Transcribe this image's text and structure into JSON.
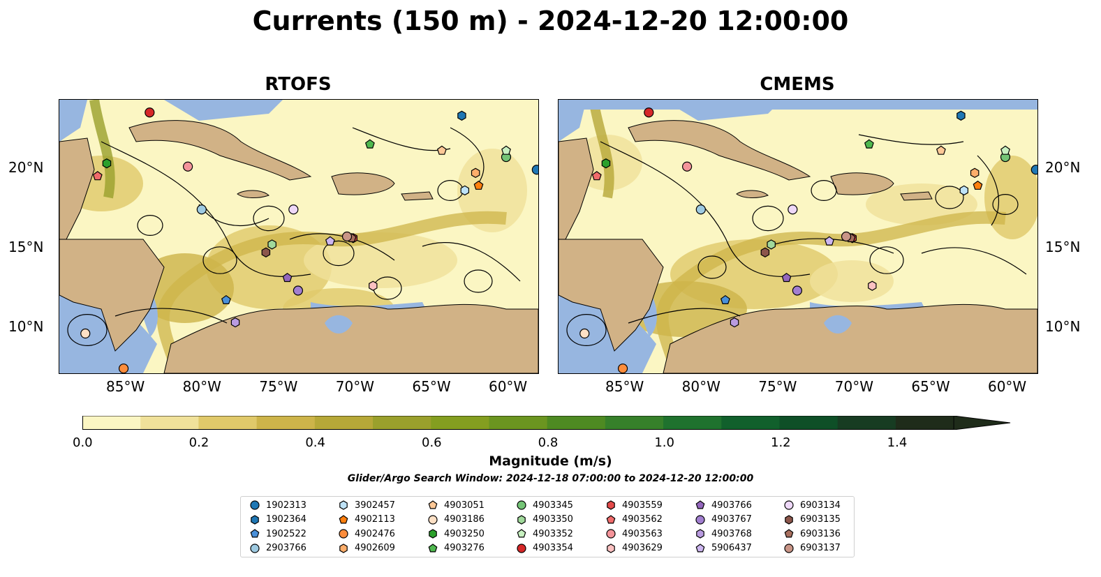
{
  "title": "Currents (150 m) - 2024-12-20 12:00:00",
  "panels": [
    {
      "title": "RTOFS"
    },
    {
      "title": "CMEMS"
    }
  ],
  "axes": {
    "lon_ticks": [
      "85°W",
      "80°W",
      "75°W",
      "70°W",
      "65°W",
      "60°W"
    ],
    "lat_ticks": [
      "20°N",
      "15°N",
      "10°N"
    ]
  },
  "colorbar": {
    "title": "Magnitude (m/s)",
    "tick_labels": [
      "0.0",
      "0.2",
      "0.4",
      "0.6",
      "0.8",
      "1.0",
      "1.2",
      "1.4"
    ],
    "range": [
      0.0,
      1.5
    ],
    "extend": "max",
    "colors": [
      "#fbf6c3",
      "#f0e19a",
      "#e0c96a",
      "#cdb44a",
      "#b6a838",
      "#9aa02c",
      "#849e20",
      "#6b9520",
      "#4e8a22",
      "#36802a",
      "#1f722e",
      "#11602c",
      "#0e4f27",
      "#173c22",
      "#1f2c1a"
    ]
  },
  "search_window": "Glider/Argo Search Window: 2024-12-18 07:00:00 to 2024-12-20 12:00:00",
  "colors": {
    "land": "#d1b286",
    "water": "#97b6e0",
    "low_speed": "#f5eab6"
  },
  "legend": [
    {
      "id": "1902313",
      "marker": "circle",
      "color": "#1f77b4"
    },
    {
      "id": "1902364",
      "marker": "hexagon",
      "color": "#1f77b4"
    },
    {
      "id": "1902522",
      "marker": "pentagon",
      "color": "#4a90d9"
    },
    {
      "id": "2903766",
      "marker": "circle",
      "color": "#9ecae1"
    },
    {
      "id": "3902457",
      "marker": "hexagon",
      "color": "#bfe3f7"
    },
    {
      "id": "4902113",
      "marker": "pentagon",
      "color": "#ff7f0e"
    },
    {
      "id": "4902476",
      "marker": "circle",
      "color": "#fd8d3c"
    },
    {
      "id": "4902609",
      "marker": "hexagon",
      "color": "#fdae6b"
    },
    {
      "id": "4903051",
      "marker": "pentagon",
      "color": "#fdc896"
    },
    {
      "id": "4903186",
      "marker": "circle",
      "color": "#fde0c5"
    },
    {
      "id": "4903250",
      "marker": "hexagon",
      "color": "#2ca02c"
    },
    {
      "id": "4903276",
      "marker": "pentagon",
      "color": "#4fb84f"
    },
    {
      "id": "4903345",
      "marker": "circle",
      "color": "#74c476"
    },
    {
      "id": "4903350",
      "marker": "hexagon",
      "color": "#a1d99b"
    },
    {
      "id": "4903352",
      "marker": "pentagon",
      "color": "#c7f0c0"
    },
    {
      "id": "4903354",
      "marker": "circle",
      "color": "#d62728"
    },
    {
      "id": "4903559",
      "marker": "hexagon",
      "color": "#e34a4a"
    },
    {
      "id": "4903562",
      "marker": "pentagon",
      "color": "#f06b6b"
    },
    {
      "id": "4903563",
      "marker": "circle",
      "color": "#f4949a"
    },
    {
      "id": "4903629",
      "marker": "hexagon",
      "color": "#fbc1c1"
    },
    {
      "id": "4903766",
      "marker": "pentagon",
      "color": "#9467bd"
    },
    {
      "id": "4903767",
      "marker": "circle",
      "color": "#a27fd0"
    },
    {
      "id": "4903768",
      "marker": "hexagon",
      "color": "#b99be0"
    },
    {
      "id": "5906437",
      "marker": "pentagon",
      "color": "#cdb6f0"
    },
    {
      "id": "6903134",
      "marker": "circle",
      "color": "#eed8f8"
    },
    {
      "id": "6903135",
      "marker": "hexagon",
      "color": "#8c564b"
    },
    {
      "id": "6903136",
      "marker": "pentagon",
      "color": "#a9705f"
    },
    {
      "id": "6903137",
      "marker": "circle",
      "color": "#c99587"
    }
  ],
  "floats": [
    {
      "id": "1902313",
      "lon": -58.0,
      "lat": 19.9
    },
    {
      "id": "1902364",
      "lon": -62.9,
      "lat": 23.3
    },
    {
      "id": "1902522",
      "lon": -78.3,
      "lat": 11.7
    },
    {
      "id": "2903766",
      "lon": -79.9,
      "lat": 17.4
    },
    {
      "id": "3902457",
      "lon": -62.7,
      "lat": 18.6
    },
    {
      "id": "4902113",
      "lon": -61.8,
      "lat": 18.9
    },
    {
      "id": "4902476",
      "lon": -85.0,
      "lat": 7.4
    },
    {
      "id": "4902609",
      "lon": -62.0,
      "lat": 19.7
    },
    {
      "id": "4903051",
      "lon": -64.2,
      "lat": 21.1
    },
    {
      "id": "4903186",
      "lon": -87.5,
      "lat": 9.6
    },
    {
      "id": "4903250",
      "lon": -86.1,
      "lat": 20.3
    },
    {
      "id": "4903276",
      "lon": -68.9,
      "lat": 21.5
    },
    {
      "id": "4903345",
      "lon": -60.0,
      "lat": 20.7
    },
    {
      "id": "4903350",
      "lon": -75.3,
      "lat": 15.2
    },
    {
      "id": "4903352",
      "lon": -60.0,
      "lat": 21.1
    },
    {
      "id": "4903354",
      "lon": -83.3,
      "lat": 23.5
    },
    {
      "id": "4903559",
      "lon": -70.0,
      "lat": 15.6
    },
    {
      "id": "4903562",
      "lon": -86.7,
      "lat": 19.5
    },
    {
      "id": "4903563",
      "lon": -80.8,
      "lat": 20.1
    },
    {
      "id": "4903629",
      "lon": -68.7,
      "lat": 12.6
    },
    {
      "id": "4903766",
      "lon": -74.3,
      "lat": 13.1
    },
    {
      "id": "4903767",
      "lon": -73.6,
      "lat": 12.3
    },
    {
      "id": "4903768",
      "lon": -77.7,
      "lat": 10.3
    },
    {
      "id": "5906437",
      "lon": -71.5,
      "lat": 15.4
    },
    {
      "id": "6903134",
      "lon": -73.9,
      "lat": 17.4
    },
    {
      "id": "6903135",
      "lon": -75.7,
      "lat": 14.7
    },
    {
      "id": "6903136",
      "lon": -70.1,
      "lat": 15.6
    },
    {
      "id": "6903137",
      "lon": -70.4,
      "lat": 15.7
    }
  ]
}
